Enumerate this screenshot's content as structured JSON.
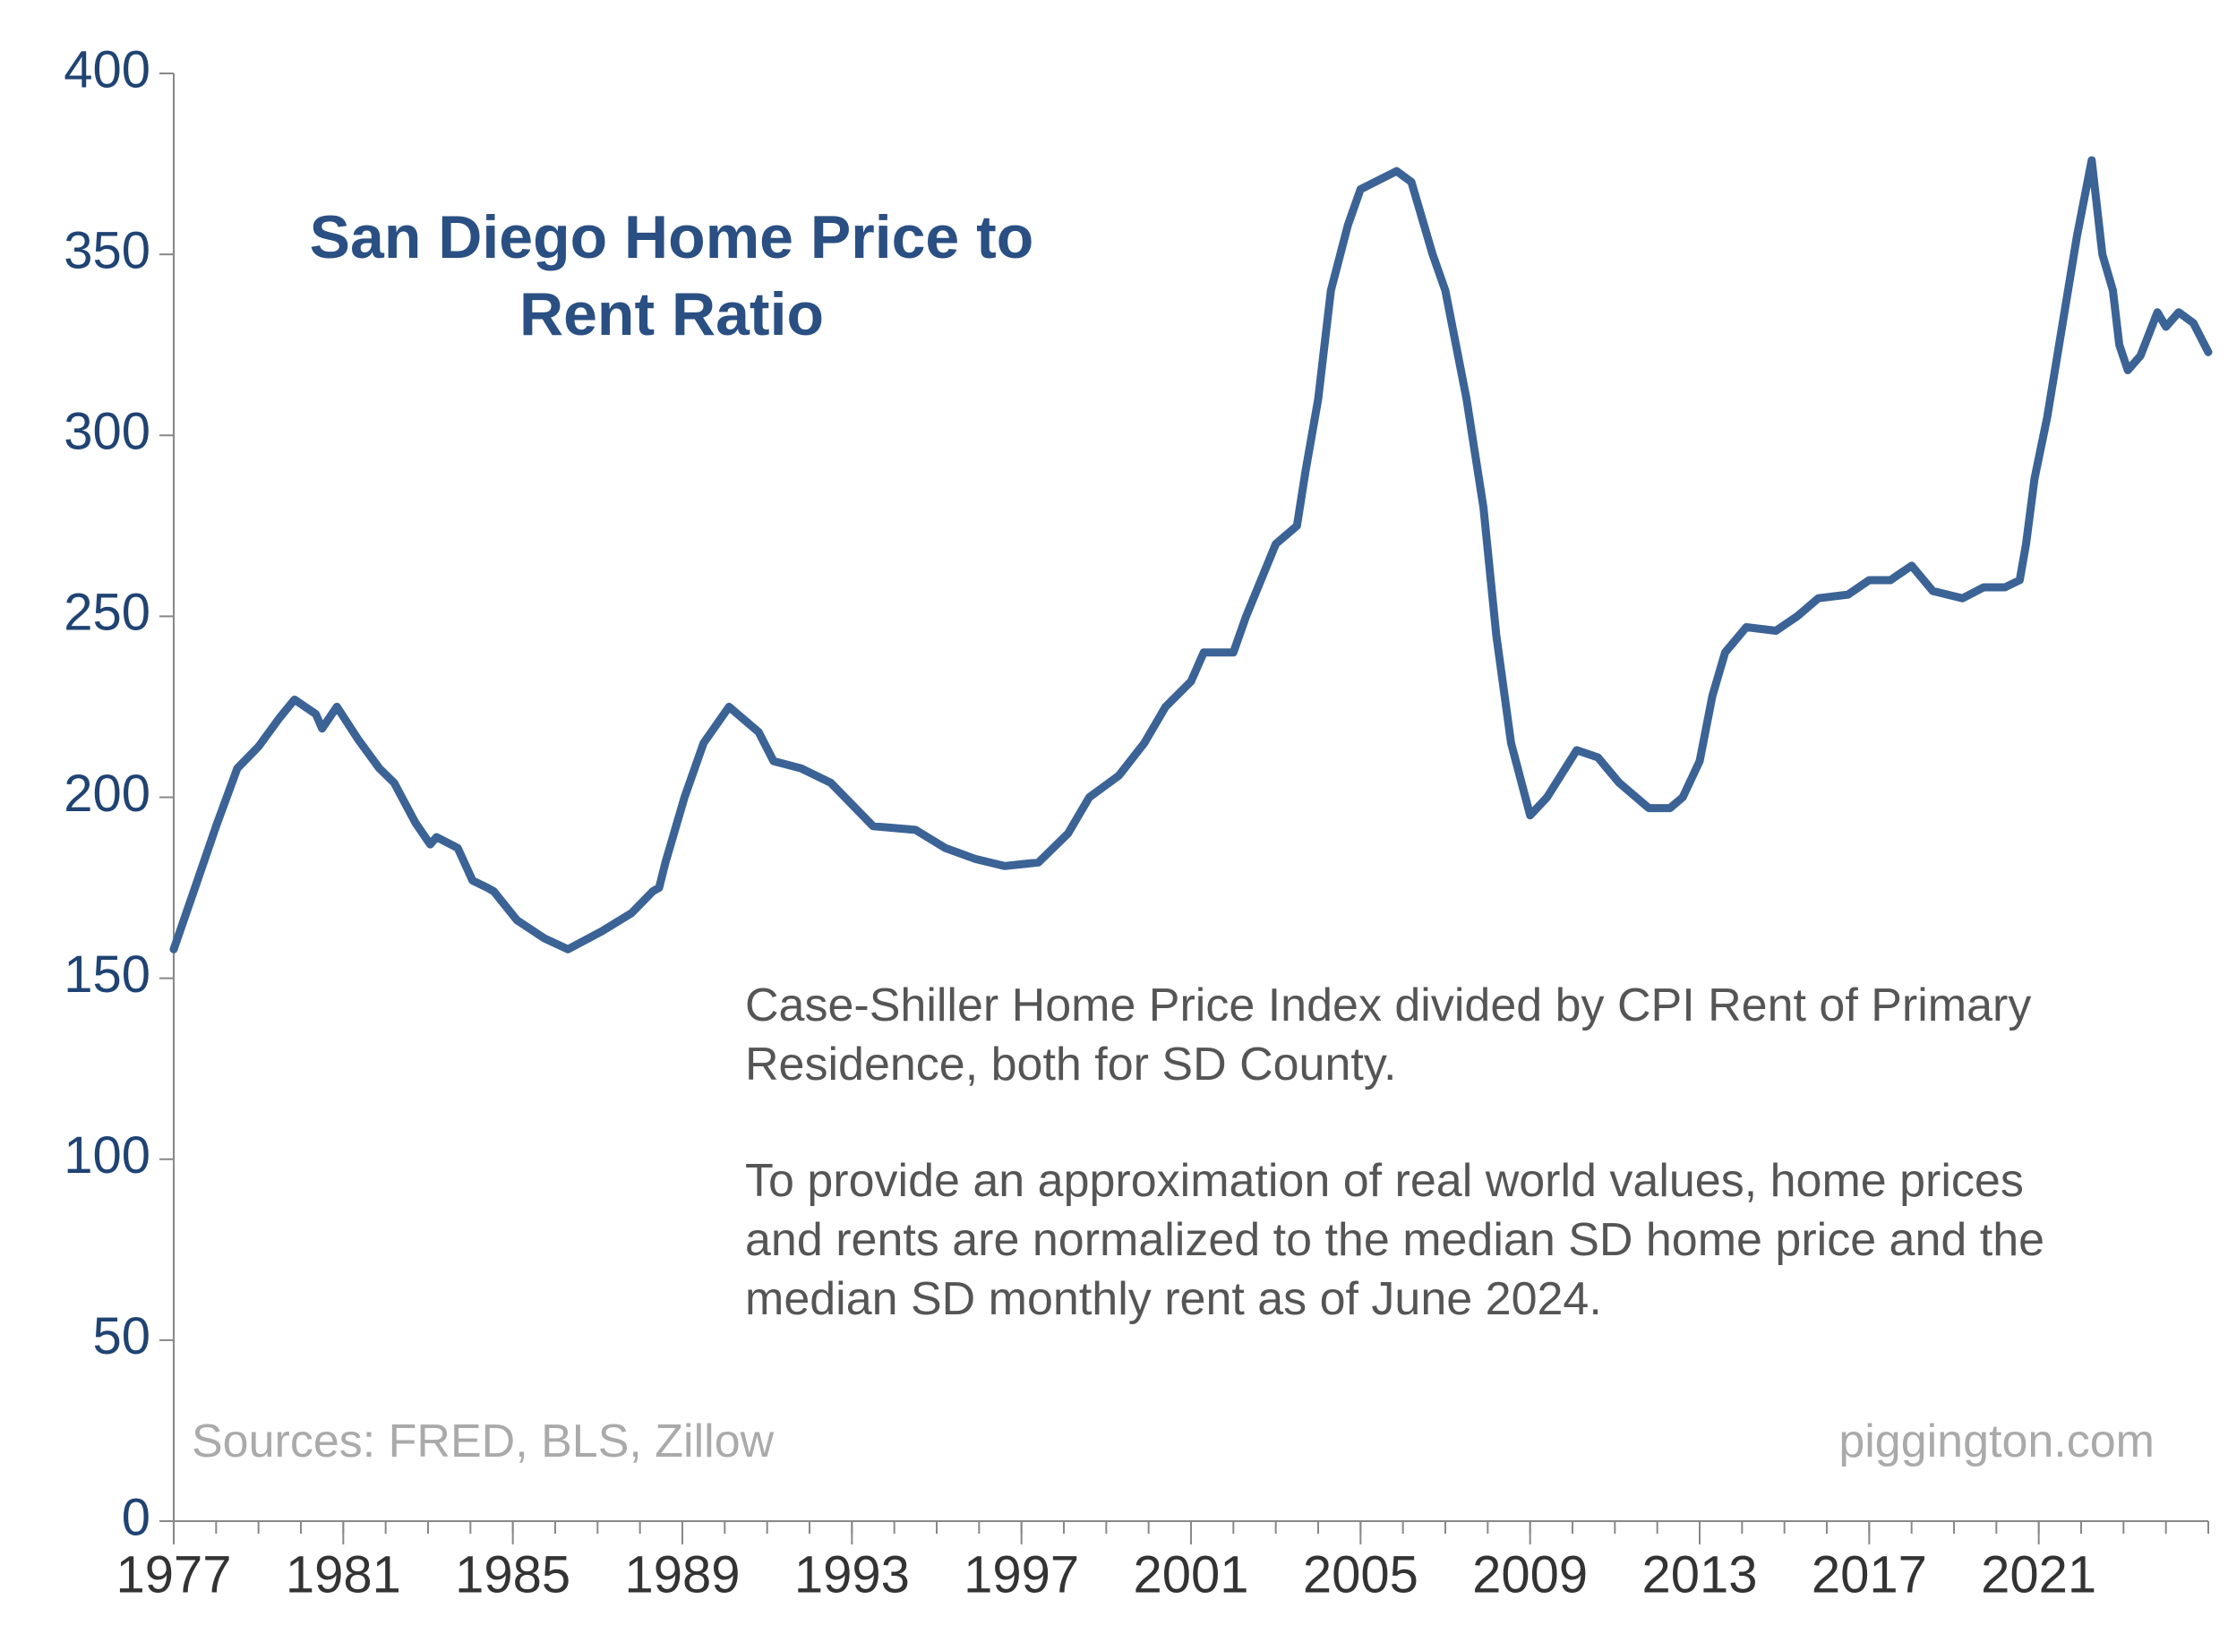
{
  "chart_data": {
    "type": "line",
    "title": "San Diego Home Price to Rent Ratio",
    "notes": [
      "Case-Shiller Home Price Index divided by CPI Rent of Primary Residence, both for SD County.",
      "To provide an approximation of real world values, home prices and rents are normalized to the median SD home price and the median SD monthly rent as of June 2024."
    ],
    "source": "Sources: FRED, BLS, Zillow",
    "website": "piggington.com",
    "color": "#3b6396",
    "x": [
      1977.0,
      1977.5,
      1978.0,
      1978.5,
      1979.0,
      1979.5,
      1979.85,
      1980.35,
      1980.5,
      1980.85,
      1981.35,
      1981.85,
      1982.2,
      1982.7,
      1983.05,
      1983.2,
      1983.7,
      1984.05,
      1984.4,
      1984.55,
      1985.1,
      1985.75,
      1986.3,
      1987.1,
      1987.8,
      1988.3,
      1988.45,
      1988.6,
      1989.05,
      1989.5,
      1990.1,
      1990.8,
      1991.15,
      1991.8,
      1992.5,
      1993.5,
      1994.5,
      1995.2,
      1995.9,
      1996.6,
      1997.4,
      1998.1,
      1998.6,
      1999.3,
      1999.9,
      2000.4,
      2001.0,
      2001.3,
      2002.0,
      2002.3,
      2003.0,
      2003.5,
      2003.7,
      2004.0,
      2004.3,
      2004.7,
      2005.0,
      2005.85,
      2006.2,
      2006.7,
      2007.0,
      2007.5,
      2007.9,
      2008.2,
      2008.55,
      2009.0,
      2009.4,
      2010.1,
      2010.6,
      2011.1,
      2011.8,
      2012.3,
      2012.6,
      2013.0,
      2013.3,
      2013.6,
      2014.1,
      2014.8,
      2015.3,
      2015.8,
      2016.5,
      2017.0,
      2017.5,
      2018.0,
      2018.5,
      2019.2,
      2019.7,
      2020.2,
      2020.55,
      2020.7,
      2020.9,
      2021.2,
      2021.55,
      2021.9,
      2022.25,
      2022.5,
      2022.75,
      2022.9,
      2023.1,
      2023.4,
      2023.8,
      2024.0,
      2024.3,
      2024.65,
      2025.0
    ],
    "values": [
      158,
      175,
      192,
      208,
      214,
      222,
      227,
      223,
      219,
      225,
      216,
      208,
      204,
      193,
      187,
      189,
      186,
      177,
      175,
      174,
      166,
      161,
      158,
      163,
      168,
      174,
      175,
      182,
      200,
      215,
      225,
      218,
      210,
      208,
      204,
      192,
      191,
      186,
      183,
      181,
      182,
      190,
      200,
      206,
      215,
      225,
      232,
      240,
      240,
      250,
      270,
      275,
      290,
      310,
      340,
      358,
      368,
      373,
      370,
      350,
      340,
      310,
      280,
      245,
      215,
      195,
      200,
      213,
      211,
      204,
      197,
      197,
      200,
      210,
      228,
      240,
      247,
      246,
      250,
      255,
      256,
      260,
      260,
      264,
      257,
      255,
      258,
      258,
      260,
      270,
      288,
      305,
      330,
      355,
      376,
      350,
      340,
      325,
      318,
      322,
      334,
      330,
      334,
      331,
      323
    ],
    "xlim": [
      1977,
      2025
    ],
    "xticks": [
      1977,
      1981,
      1985,
      1989,
      1993,
      1997,
      2001,
      2005,
      2009,
      2013,
      2017,
      2021
    ],
    "xminor_ticks": [
      1977,
      1978,
      1979,
      1980,
      1981,
      1982,
      1983,
      1984,
      1985,
      1986,
      1987,
      1988,
      1989,
      1990,
      1991,
      1992,
      1993,
      1994,
      1995,
      1996,
      1997,
      1998,
      1999,
      2000,
      2001,
      2002,
      2003,
      2004,
      2005,
      2006,
      2007,
      2008,
      2009,
      2010,
      2011,
      2012,
      2013,
      2014,
      2015,
      2016,
      2017,
      2018,
      2019,
      2020,
      2021,
      2022,
      2023,
      2024,
      2025
    ],
    "ylim": [
      0,
      400
    ],
    "yticks": [
      0,
      50,
      100,
      150,
      200,
      250,
      300,
      350,
      400
    ],
    "grid": false
  }
}
